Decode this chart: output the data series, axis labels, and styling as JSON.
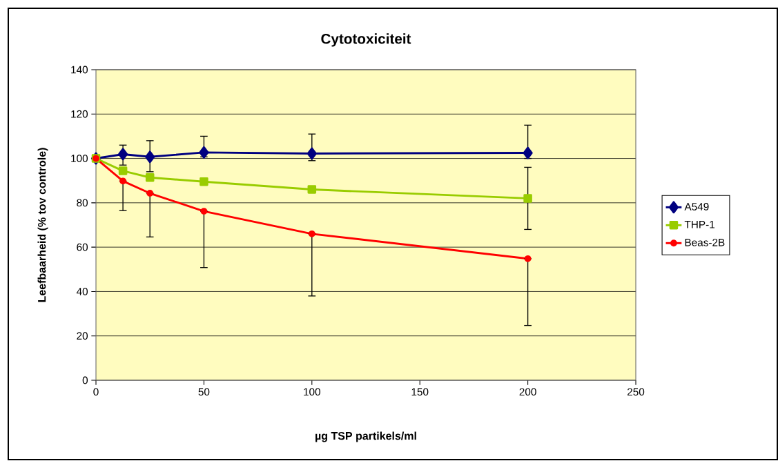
{
  "chart_data": {
    "type": "line",
    "title": "Cytotoxiciteit",
    "xlabel": "µg TSP partikels/ml",
    "ylabel": "Leefbaarheid (% tov controle)",
    "x": [
      0,
      12.5,
      25,
      50,
      100,
      200
    ],
    "series": [
      {
        "name": "A549",
        "color": "#000080",
        "marker": "diamond",
        "values": [
          100,
          101.9,
          100.7,
          102.7,
          102.2,
          102.5
        ],
        "errors": [
          null,
          [
            97,
            106
          ],
          [
            94,
            108
          ],
          [
            100.7,
            110
          ],
          [
            99,
            111
          ],
          [
            100,
            115
          ]
        ]
      },
      {
        "name": "THP-1",
        "color": "#99cc00",
        "marker": "square",
        "values": [
          100,
          94.4,
          91.4,
          89.5,
          86,
          82
        ],
        "errors": [
          null,
          null,
          null,
          null,
          null,
          [
            68,
            96
          ]
        ]
      },
      {
        "name": "Beas-2B",
        "color": "#ff0000",
        "marker": "circle",
        "values": [
          100,
          89.8,
          84.3,
          76.2,
          66,
          54.8
        ],
        "errors": [
          null,
          [
            76.5,
            89.8
          ],
          [
            64.6,
            84.3
          ],
          [
            50.8,
            76.2
          ],
          [
            38,
            66
          ],
          [
            24.7,
            54.8
          ]
        ]
      }
    ],
    "xlim": [
      0,
      250
    ],
    "xticks": [
      0,
      50,
      100,
      150,
      200,
      250
    ],
    "ylim": [
      0,
      140
    ],
    "yticks": [
      0,
      20,
      40,
      60,
      80,
      100,
      120,
      140
    ],
    "grid": "y",
    "legend": "right"
  }
}
